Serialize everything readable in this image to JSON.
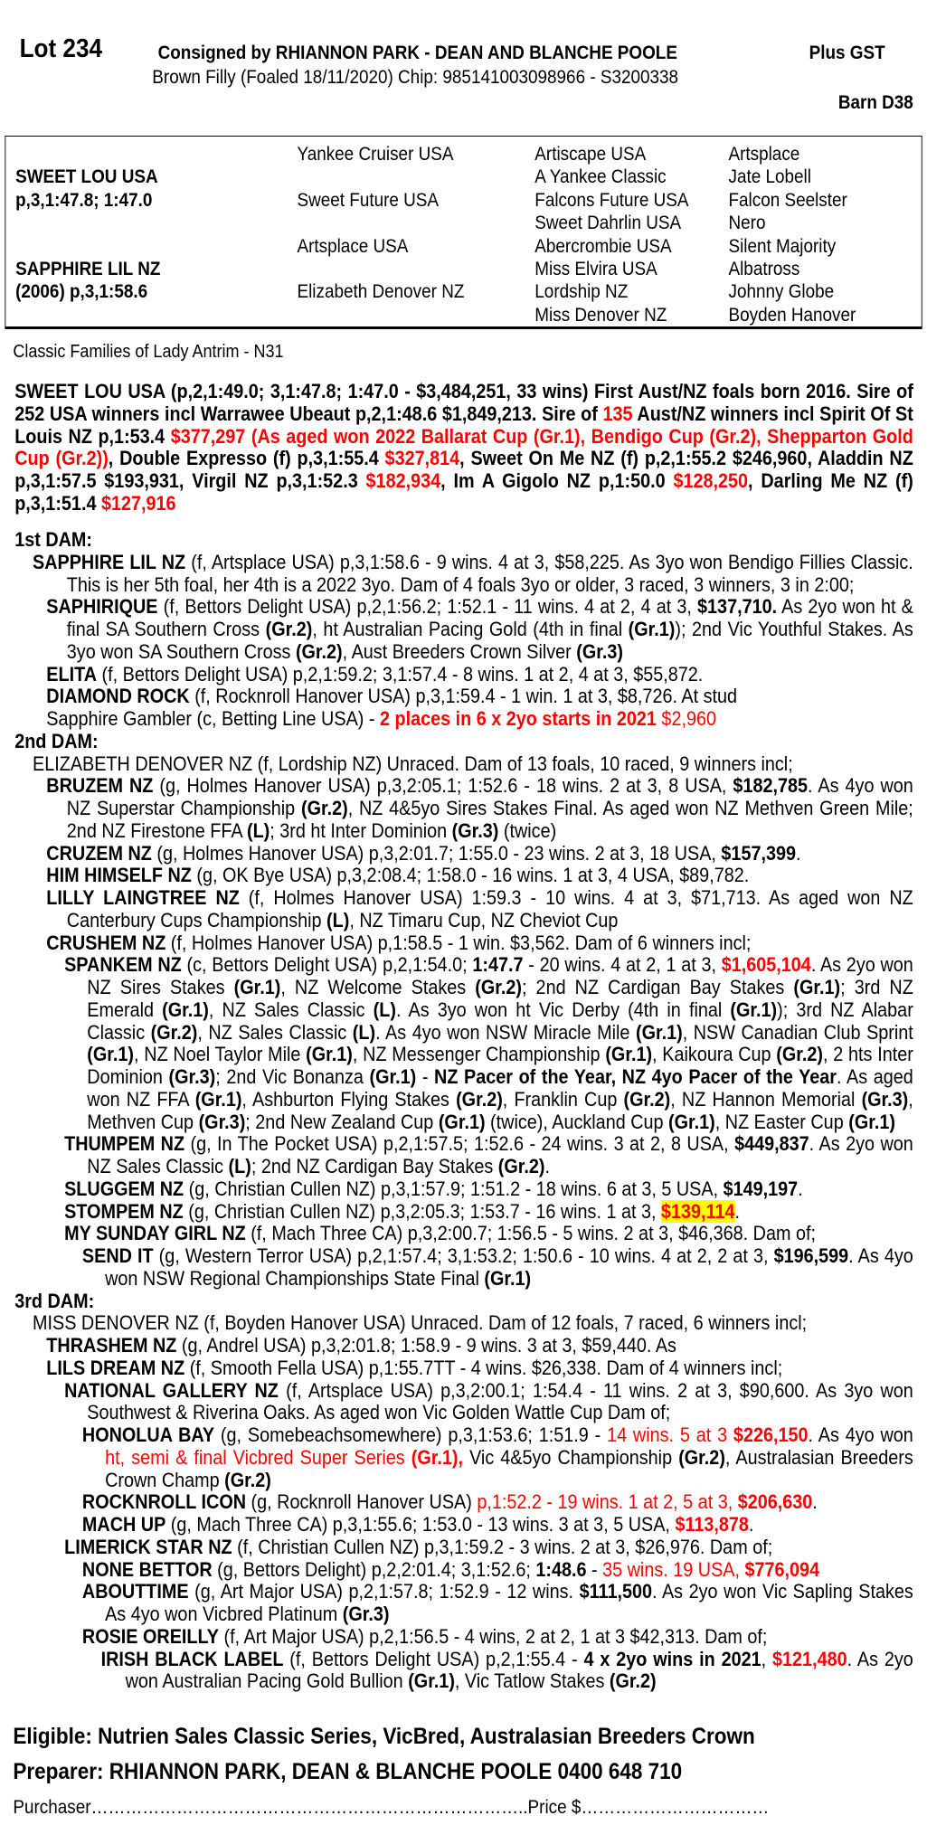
{
  "header": {
    "lot": "Lot 234",
    "consigned": "Consigned by RHIANNON PARK - DEAN AND BLANCHE POOLE",
    "gst": "Plus GST",
    "description": "Brown Filly (Foaled 18/11/2020) Chip: 985141003098966 - S3200338",
    "barn": "Barn D38"
  },
  "pedigree": {
    "col1": [
      "",
      "SWEET LOU USA",
      "p,3,1:47.8; 1:47.0",
      "",
      "",
      "SAPPHIRE LIL NZ",
      "(2006) p,3,1:58.6",
      ""
    ],
    "col2": [
      "Yankee Cruiser USA",
      "",
      "Sweet Future USA",
      "",
      "Artsplace USA",
      "",
      "Elizabeth Denover NZ",
      ""
    ],
    "col3": [
      "Artiscape USA",
      "A Yankee Classic",
      "Falcons Future USA",
      "Sweet Dahrlin USA",
      "Abercrombie USA",
      "Miss Elvira USA",
      "Lordship NZ",
      "Miss Denover NZ"
    ],
    "col4": [
      "Artsplace",
      "Jate Lobell",
      "Falcon Seelster",
      "Nero",
      "Silent Majority",
      "Albatross",
      "Johnny Globe",
      "Boyden Hanover"
    ]
  },
  "family": "Classic Families of Lady Antrim - N31",
  "sire": [
    [
      "b",
      "SWEET LOU USA (p,2,1:49.0; 3,1:47.8; 1:47.0 - $3,484,251, 33 wins) First Aust/NZ foals born 2016. Sire of 252 USA winners incl Warrawee Ubeaut p,2,1:48.6 $1,849,213. Sire of "
    ],
    [
      "rb",
      "135"
    ],
    [
      "b",
      " Aust/NZ winners incl Spirit Of St Louis NZ p,1:53.4 "
    ],
    [
      "rb",
      "$377,297 (As aged won 2022 Ballarat Cup (Gr.1), Bendigo Cup (Gr.2), Shepparton Gold Cup (Gr.2))"
    ],
    [
      "b",
      ", Double Expresso (f) p,3,1:55.4 "
    ],
    [
      "rb",
      "$327,814"
    ],
    [
      "b",
      ", Sweet On Me NZ (f) p,2,1:55.2 $246,960, Aladdin NZ p,3,1:57.5 $193,931, Virgil NZ p,3,1:52.3 "
    ],
    [
      "rb",
      "$182,934"
    ],
    [
      "b",
      ", Im A Gigolo NZ p,1:50.0 "
    ],
    [
      "rb",
      "$128,250"
    ],
    [
      "b",
      ", Darling Me NZ (f) p,3,1:51.4 "
    ],
    [
      "rb",
      "$127,916"
    ]
  ],
  "entries": [
    {
      "lvl": "head",
      "segs": [
        [
          "b",
          "1st DAM:"
        ]
      ]
    },
    {
      "lvl": "lvl0",
      "segs": [
        [
          "b",
          "SAPPHIRE LIL NZ"
        ],
        [
          "",
          " (f, Artsplace USA) p,3,1:58.6 - 9 wins. 4 at 3, $58,225. As 3yo won Bendigo Fillies Classic. This is her 5th foal, her 4th is a 2022 3yo. Dam of 4 foals 3yo or older, 3 raced, 3 winners, 3 in 2:00;"
        ]
      ]
    },
    {
      "lvl": "lvl1",
      "segs": [
        [
          "b",
          "SAPHIRIQUE"
        ],
        [
          "",
          " (f, Bettors Delight USA) p,2,1:56.2; 1:52.1 - 11 wins. 4 at 2, 4 at 3, "
        ],
        [
          "b",
          "$137,710."
        ],
        [
          "",
          " As 2yo won ht & final SA Southern Cross "
        ],
        [
          "b",
          "(Gr.2)"
        ],
        [
          "",
          ", ht Australian Pacing Gold (4th in final "
        ],
        [
          "b",
          "(Gr.1)"
        ],
        [
          "",
          "); 2nd Vic Youthful Stakes. As 3yo won SA Southern Cross "
        ],
        [
          "b",
          "(Gr.2)"
        ],
        [
          "",
          ", Aust Breeders Crown Silver "
        ],
        [
          "b",
          "(Gr.3)"
        ]
      ]
    },
    {
      "lvl": "lvl1",
      "segs": [
        [
          "b",
          "ELITA"
        ],
        [
          "",
          " (f, Bettors Delight USA) p,2,1:59.2; 3,1:57.4 - 8 wins. 1 at 2, 4 at 3, $55,872."
        ]
      ]
    },
    {
      "lvl": "lvl1",
      "segs": [
        [
          "b",
          "DIAMOND ROCK"
        ],
        [
          "",
          " (f, Rocknroll Hanover USA) p,3,1:59.4 - 1 win. 1 at 3, $8,726. At stud"
        ]
      ]
    },
    {
      "lvl": "lvl1",
      "segs": [
        [
          "",
          "Sapphire Gambler (c, Betting Line USA) - "
        ],
        [
          "rb",
          "2 places in 6 x 2yo starts in 2021"
        ],
        [
          "r",
          " $2,960"
        ]
      ]
    },
    {
      "lvl": "head",
      "segs": [
        [
          "b",
          "2nd DAM:"
        ]
      ]
    },
    {
      "lvl": "lvl0",
      "segs": [
        [
          "",
          "ELIZABETH DENOVER NZ (f, Lordship NZ) Unraced. Dam of 13 foals, 10 raced, 9 winners incl;"
        ]
      ]
    },
    {
      "lvl": "lvl1",
      "segs": [
        [
          "b",
          "BRUZEM NZ"
        ],
        [
          "",
          " (g, Holmes Hanover USA) p,3,2:05.1; 1:52.6 - 18 wins. 2 at 3, 8 USA, "
        ],
        [
          "b",
          "$182,785"
        ],
        [
          "",
          ". As 4yo won NZ Superstar Championship "
        ],
        [
          "b",
          "(Gr.2)"
        ],
        [
          "",
          ", NZ 4&5yo Sires Stakes Final. As aged won NZ Methven Green Mile; 2nd NZ Firestone FFA "
        ],
        [
          "b",
          "(L)"
        ],
        [
          "",
          "; 3rd ht Inter Dominion "
        ],
        [
          "b",
          "(Gr.3)"
        ],
        [
          "",
          " (twice)"
        ]
      ]
    },
    {
      "lvl": "lvl1",
      "segs": [
        [
          "b",
          "CRUZEM NZ"
        ],
        [
          "",
          " (g, Holmes Hanover USA) p,3,2:01.7; 1:55.0 - 23 wins. 2 at 3, 18 USA, "
        ],
        [
          "b",
          "$157,399"
        ],
        [
          "",
          "."
        ]
      ]
    },
    {
      "lvl": "lvl1",
      "segs": [
        [
          "b",
          "HIM HIMSELF NZ"
        ],
        [
          "",
          " (g, OK Bye USA) p,3,2:08.4; 1:58.0 - 16 wins. 1 at 3, 4 USA, $89,782."
        ]
      ]
    },
    {
      "lvl": "lvl1",
      "segs": [
        [
          "b",
          "LILLY LAINGTREE NZ"
        ],
        [
          "",
          " (f, Holmes Hanover USA) 1:59.3 - 10 wins. 4 at 3, $71,713. As aged won NZ Canterbury Cups Championship "
        ],
        [
          "b",
          "(L)"
        ],
        [
          "",
          ", NZ Timaru Cup, NZ Cheviot Cup"
        ]
      ]
    },
    {
      "lvl": "lvl1",
      "segs": [
        [
          "b",
          "CRUSHEM NZ"
        ],
        [
          "",
          " (f, Holmes Hanover USA) p,1:58.5 - 1 win. $3,562. Dam of 6 winners incl;"
        ]
      ]
    },
    {
      "lvl": "lvl2",
      "segs": [
        [
          "b",
          "SPANKEM NZ"
        ],
        [
          "",
          " (c, Bettors Delight USA) p,2,1:54.0; "
        ],
        [
          "b",
          "1:47.7"
        ],
        [
          "",
          " - 20 wins. 4 at 2, 1 at 3, "
        ],
        [
          "rb",
          "$1,605,104"
        ],
        [
          "",
          ". As 2yo won NZ Sires Stakes "
        ],
        [
          "b",
          "(Gr.1)"
        ],
        [
          "",
          ", NZ Welcome Stakes "
        ],
        [
          "b",
          "(Gr.2)"
        ],
        [
          "",
          "; 2nd NZ Cardigan Bay Stakes "
        ],
        [
          "b",
          "(Gr.1)"
        ],
        [
          "",
          "; 3rd NZ Emerald "
        ],
        [
          "b",
          "(Gr.1)"
        ],
        [
          "",
          ", NZ Sales Classic "
        ],
        [
          "b",
          "(L)"
        ],
        [
          "",
          ". As 3yo won ht Vic Derby (4th in final "
        ],
        [
          "b",
          "(Gr.1)"
        ],
        [
          "",
          "); 3rd NZ Alabar Classic "
        ],
        [
          "b",
          "(Gr.2)"
        ],
        [
          "",
          ", NZ Sales Classic "
        ],
        [
          "b",
          "(L)"
        ],
        [
          "",
          ". As 4yo won NSW Miracle Mile "
        ],
        [
          "b",
          "(Gr.1)"
        ],
        [
          "",
          ", NSW Canadian Club Sprint "
        ],
        [
          "b",
          "(Gr.1)"
        ],
        [
          "",
          ", NZ Noel Taylor Mile "
        ],
        [
          "b",
          "(Gr.1)"
        ],
        [
          "",
          ", NZ Messenger Championship "
        ],
        [
          "b",
          "(Gr.1)"
        ],
        [
          "",
          ", Kaikoura Cup "
        ],
        [
          "b",
          "(Gr.2)"
        ],
        [
          "",
          ", 2 hts Inter Dominion "
        ],
        [
          "b",
          "(Gr.3)"
        ],
        [
          "",
          "; 2nd Vic Bonanza "
        ],
        [
          "b",
          "(Gr.1)"
        ],
        [
          "",
          " - "
        ],
        [
          "b",
          "NZ Pacer of the Year, NZ 4yo Pacer of the Year"
        ],
        [
          "",
          ". As aged won NZ FFA "
        ],
        [
          "b",
          "(Gr.1)"
        ],
        [
          "",
          ", Ashburton Flying Stakes "
        ],
        [
          "b",
          "(Gr.2)"
        ],
        [
          "",
          ", Franklin Cup "
        ],
        [
          "b",
          "(Gr.2)"
        ],
        [
          "",
          ", NZ Hannon Memorial "
        ],
        [
          "b",
          "(Gr.3)"
        ],
        [
          "",
          ", Methven Cup "
        ],
        [
          "b",
          "(Gr.3)"
        ],
        [
          "",
          "; 2nd New Zealand Cup "
        ],
        [
          "b",
          "(Gr.1)"
        ],
        [
          "",
          " (twice), Auckland Cup "
        ],
        [
          "b",
          "(Gr.1)"
        ],
        [
          "",
          ", NZ Easter Cup "
        ],
        [
          "b",
          "(Gr.1)"
        ]
      ]
    },
    {
      "lvl": "lvl2",
      "segs": [
        [
          "b",
          "THUMPEM NZ"
        ],
        [
          "",
          " (g, In The Pocket USA) p,2,1:57.5; 1:52.6 - 24 wins. 3 at 2, 8 USA, "
        ],
        [
          "b",
          "$449,837"
        ],
        [
          "",
          ". As 2yo won NZ Sales Classic "
        ],
        [
          "b",
          "(L)"
        ],
        [
          "",
          "; 2nd NZ Cardigan Bay Stakes "
        ],
        [
          "b",
          "(Gr.2)"
        ],
        [
          "",
          "."
        ]
      ]
    },
    {
      "lvl": "lvl2",
      "segs": [
        [
          "b",
          "SLUGGEM NZ"
        ],
        [
          "",
          " (g, Christian Cullen NZ) p,3,1:57.9; 1:51.2 - 18 wins. 6 at 3, 5 USA, "
        ],
        [
          "b",
          "$149,197"
        ],
        [
          "",
          "."
        ]
      ]
    },
    {
      "lvl": "lvl2",
      "segs": [
        [
          "b",
          "STOMPEM NZ"
        ],
        [
          "",
          " (g, Christian Cullen NZ) p,3,2:05.3; 1:53.7 - 16 wins. 1 at 3, "
        ],
        [
          "hl",
          "$139,114"
        ],
        [
          "",
          "."
        ]
      ]
    },
    {
      "lvl": "lvl2",
      "segs": [
        [
          "b",
          "MY SUNDAY GIRL NZ"
        ],
        [
          "",
          " (f, Mach Three CA) p,3,2:00.7; 1:56.5 - 5 wins. 2 at 3, $46,368. Dam of;"
        ]
      ]
    },
    {
      "lvl": "lvl3",
      "segs": [
        [
          "b",
          "SEND IT"
        ],
        [
          "",
          " (g, Western Terror USA) p,2,1:57.4; 3,1:53.2; 1:50.6 - 10 wins. 4 at 2, 2 at 3, "
        ],
        [
          "b",
          "$196,599"
        ],
        [
          "",
          ". As 4yo won NSW Regional Championships State Final "
        ],
        [
          "b",
          "(Gr.1)"
        ]
      ]
    },
    {
      "lvl": "head",
      "segs": [
        [
          "b",
          "3rd DAM:"
        ]
      ]
    },
    {
      "lvl": "lvl0",
      "segs": [
        [
          "",
          "MISS DENOVER NZ (f, Boyden Hanover USA) Unraced. Dam of 12 foals, 7 raced, 6 winners incl;"
        ]
      ]
    },
    {
      "lvl": "lvl1",
      "segs": [
        [
          "b",
          "THRASHEM NZ"
        ],
        [
          "",
          " (g, Andrel USA) p,3,2:01.8; 1:58.9 - 9 wins. 3 at 3, $59,440. As"
        ]
      ]
    },
    {
      "lvl": "lvl1",
      "segs": [
        [
          "b",
          "LILS DREAM NZ"
        ],
        [
          "",
          " (f, Smooth Fella USA) p,1:55.7TT - 4 wins. $26,338. Dam of 4 winners incl;"
        ]
      ]
    },
    {
      "lvl": "lvl2",
      "segs": [
        [
          "b",
          "NATIONAL GALLERY NZ"
        ],
        [
          "",
          " (f, Artsplace USA) p,3,2:00.1; 1:54.4 - 11 wins. 2 at 3, $90,600. As 3yo won Southwest & Riverina Oaks. As aged won Vic Golden Wattle Cup Dam of;"
        ]
      ]
    },
    {
      "lvl": "lvl3",
      "segs": [
        [
          "b",
          "HONOLUA BAY"
        ],
        [
          "",
          " (g, Somebeachsomewhere) p,3,1:53.6; 1:51.9 - "
        ],
        [
          "r",
          "14 wins. 5 at 3 "
        ],
        [
          "rb",
          "$226,150"
        ],
        [
          "",
          ". As 4yo won "
        ],
        [
          "r",
          "ht, semi & final Vicbred Super Series "
        ],
        [
          "rb",
          "(Gr.1),"
        ],
        [
          "",
          " Vic 4&5yo Championship "
        ],
        [
          "b",
          "(Gr.2)"
        ],
        [
          "",
          ", Australasian Breeders Crown Champ "
        ],
        [
          "b",
          "(Gr.2)"
        ]
      ]
    },
    {
      "lvl": "lvl3",
      "segs": [
        [
          "b",
          "ROCKNROLL ICON"
        ],
        [
          "",
          " (g, Rocknroll Hanover USA) "
        ],
        [
          "r",
          "p,1:52.2 - 19 wins. 1 at 2, 5 at 3, "
        ],
        [
          "rb",
          "$206,630"
        ],
        [
          "",
          "."
        ]
      ]
    },
    {
      "lvl": "lvl3",
      "segs": [
        [
          "b",
          "MACH UP"
        ],
        [
          "",
          " (g, Mach Three CA) p,3,1:55.6; 1:53.0 - 13 wins. 3 at 3, 5 USA, "
        ],
        [
          "rb",
          "$113,878"
        ],
        [
          "",
          "."
        ]
      ]
    },
    {
      "lvl": "lvl2",
      "segs": [
        [
          "b",
          "LIMERICK STAR NZ"
        ],
        [
          "",
          " (f, Christian Cullen NZ) p,3,1:59.2 - 3 wins. 2 at 3, $26,976. Dam of;"
        ]
      ]
    },
    {
      "lvl": "lvl3",
      "segs": [
        [
          "b",
          "NONE BETTOR"
        ],
        [
          "",
          " (g, Bettors Delight) p,2,2:01.4; 3,1:52.6; "
        ],
        [
          "b",
          "1:48.6"
        ],
        [
          "",
          " - "
        ],
        [
          "r",
          "35 wins. 19 USA, "
        ],
        [
          "rb",
          "$776,094"
        ]
      ]
    },
    {
      "lvl": "lvl3",
      "segs": [
        [
          "b",
          "ABOUTTIME"
        ],
        [
          "",
          " (g, Art Major USA) p,2,1:57.8; 1:52.9 - 12 wins. "
        ],
        [
          "b",
          "$111,500"
        ],
        [
          "",
          ". As 2yo won Vic Sapling Stakes As 4yo won Vicbred Platinum "
        ],
        [
          "b",
          "(Gr.3)"
        ]
      ]
    },
    {
      "lvl": "lvl3",
      "segs": [
        [
          "b",
          "ROSIE OREILLY"
        ],
        [
          "",
          " (f, Art Major USA) p,2,1:56.5 - 4 wins, 2 at 2, 1 at 3 $42,313. Dam of;"
        ]
      ]
    },
    {
      "lvl": "lvl4",
      "segs": [
        [
          "b",
          "IRISH BLACK LABEL"
        ],
        [
          "",
          " (f, Bettors Delight USA) p,2,1:55.4 - "
        ],
        [
          "b",
          "4 x 2yo wins in 2021"
        ],
        [
          "",
          ", "
        ],
        [
          "rb",
          "$121,480"
        ],
        [
          "",
          ". As 2yo won Australian Pacing Gold Bullion "
        ],
        [
          "b",
          "(Gr.1)"
        ],
        [
          "",
          ", Vic Tatlow Stakes "
        ],
        [
          "b",
          "(Gr.2)"
        ]
      ]
    }
  ],
  "footer": {
    "eligible": "Eligible: Nutrien Sales Classic Series, VicBred, Australasian Breeders Crown",
    "preparer": "Preparer: RHIANNON PARK, DEAN & BLANCHE POOLE 0400 648 710",
    "purchaser": "Purchaser…………………………………………………………………..Price $……………………………"
  },
  "colors": {
    "highlight_text": "#ff0000",
    "highlight_bg": "#ffff00"
  }
}
